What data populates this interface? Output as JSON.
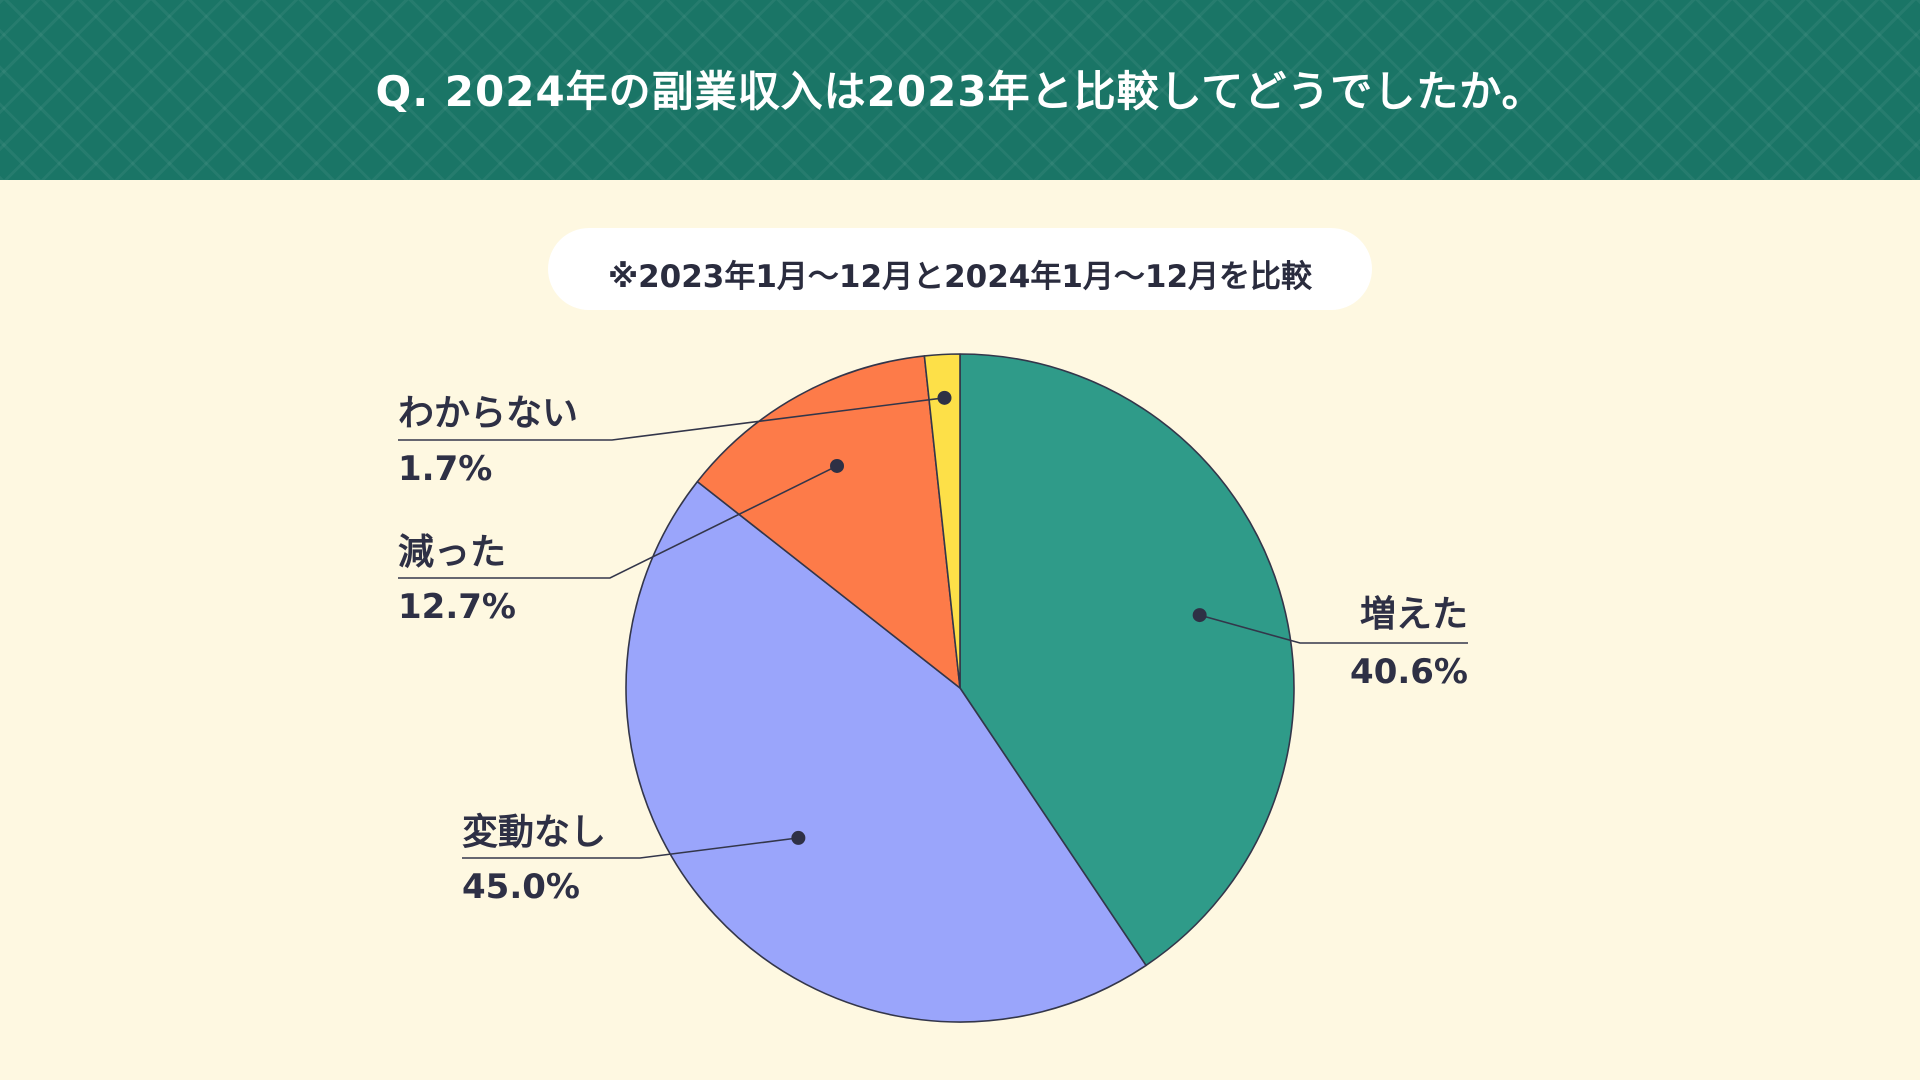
{
  "header": {
    "title": "Q. 2024年の副業収入は2023年と比較してどうでしたか。"
  },
  "subtitle": "※2023年1月～12月と2024年1月～12月を比較",
  "colors": {
    "header_bg": "#1a7566",
    "page_bg": "#fef8e1",
    "text": "#2e3045"
  },
  "chart_data": {
    "type": "pie",
    "start": "top",
    "direction": "clockwise",
    "slices": [
      {
        "label": "増えた",
        "value": 40.6,
        "value_label": "40.6%",
        "color": "#2f9b89"
      },
      {
        "label": "変動なし",
        "value": 45.0,
        "value_label": "45.0%",
        "color": "#9aa5fb"
      },
      {
        "label": "減った",
        "value": 12.7,
        "value_label": "12.7%",
        "color": "#fd7b49"
      },
      {
        "label": "わからない",
        "value": 1.7,
        "value_label": "1.7%",
        "color": "#fde048"
      }
    ]
  }
}
